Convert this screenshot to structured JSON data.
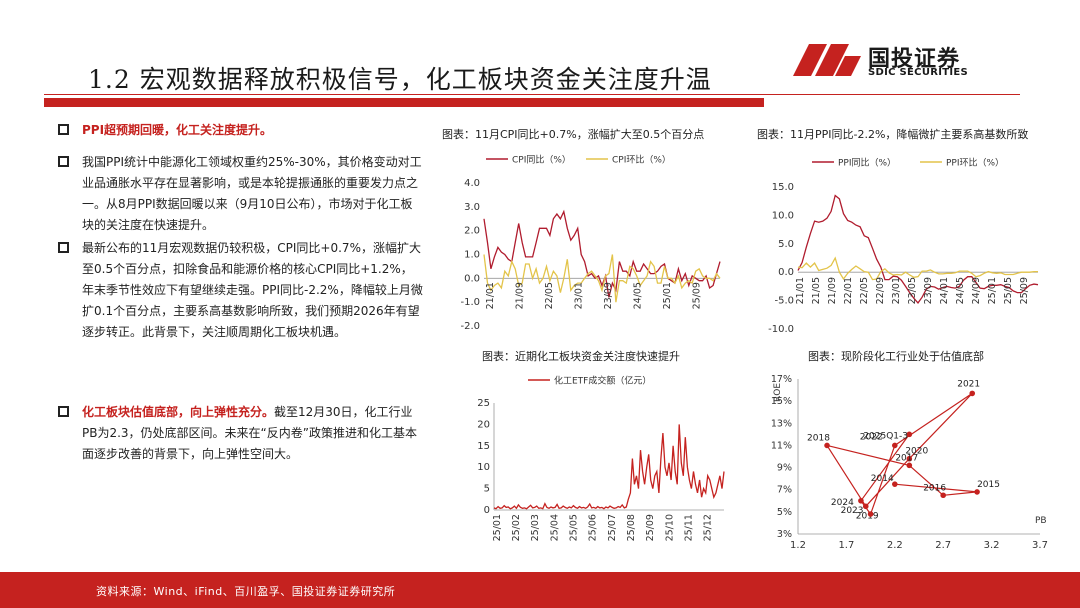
{
  "header": {
    "title": "1.2 宏观数据释放积极信号，化工板块资金关注度升温",
    "logo_cn": "国投证券",
    "logo_en": "SDIC SECURITIES"
  },
  "bullets": [
    {
      "parts": [
        {
          "text": "PPI超预期回暖，化工关注度提升。",
          "red": true
        }
      ]
    },
    {
      "parts": [
        {
          "text": "我国PPI统计中能源化工领域权重约25%-30%，其价格变动对工业品通胀水平存在显著影响，或是本轮提振通胀的重要发力点之一。从8月PPI数据回暖以来（9月10日公布），市场对于化工板块的关注度在快速提升。",
          "red": false
        }
      ]
    },
    {
      "parts": [
        {
          "text": "最新公布的11月宏观数据仍较积极，CPI同比+0.7%，涨幅扩大至0.5个百分点，扣除食品和能源价格的核心CPI同比+1.2%，年末季节性效应下有望继续走强。PPI同比-2.2%，降幅较上月微扩0.1个百分点，主要系高基数影响所致，我们预期2026年有望逐步转正。此背景下，关注顺周期化工板块机遇。",
          "red": false
        }
      ]
    },
    {
      "parts": [
        {
          "text": "化工板块估值底部，向上弹性充分。",
          "red": true
        },
        {
          "text": "截至12月30日，化工行业PB为2.3，仍处底部区间。未来在“反内卷”政策推进和化工基本面逐步改善的背景下，向上弹性空间大。",
          "red": false
        }
      ]
    }
  ],
  "captions": {
    "cpi": "图表：11月CPI同比+0.7%，涨幅扩大至0.5个百分点",
    "ppi": "图表：11月PPI同比-2.2%，降幅微扩主要系高基数所致",
    "etf": "图表：近期化工板块资金关注度快速提升",
    "val": "图表：现阶段化工行业处于估值底部"
  },
  "footer": {
    "source": "资料来源：Wind、iFind、百川盈孚、国投证券证券研究所"
  },
  "colors": {
    "red": "#c5221f",
    "dark_red": "#b01c2e",
    "gold": "#e3c44a"
  },
  "chart_data": [
    {
      "type": "line",
      "id": "cpi",
      "series": [
        {
          "name": "CPI同比（%）",
          "color": "#b01c2e",
          "values": [
            2.5,
            1.5,
            0.4,
            0.9,
            1.3,
            1.1,
            1.0,
            0.8,
            0.7,
            1.5,
            2.3,
            1.5,
            0.9,
            0.9,
            0.9,
            1.5,
            2.1,
            2.1,
            2.1,
            1.8,
            2.5,
            2.7,
            2.5,
            2.8,
            2.1,
            1.6,
            1.8,
            2.1,
            1.0,
            0.7,
            0.1,
            0.2,
            0.0,
            0.1,
            -0.3,
            0.1,
            -0.8,
            -0.2,
            -0.5,
            0.7,
            0.3,
            0.3,
            0.1,
            0.7,
            0.3,
            0.3,
            0.6,
            0.4,
            0.2,
            0.2,
            0.3,
            0.5,
            0.6,
            0.0,
            -0.1,
            -0.2,
            0.4,
            -0.1,
            0.2,
            -0.3,
            0.1,
            0.0,
            -0.1,
            -0.1,
            0.1,
            -0.4,
            -0.3,
            0.2,
            0.7
          ]
        },
        {
          "name": "CPI环比（%）",
          "color": "#e3c44a",
          "values": [
            1.0,
            -0.2,
            -0.5,
            -0.3,
            -0.2,
            -0.4,
            0.3,
            0.1,
            0.7,
            0.4,
            -0.3,
            -0.2,
            0.6,
            0.6,
            0.0,
            0.4,
            -0.2,
            0.0,
            0.5,
            -0.1,
            0.3,
            0.1,
            -0.6,
            0.0,
            0.8,
            -0.5,
            -0.3,
            -0.2,
            -0.2,
            0.0,
            0.2,
            0.3,
            0.1,
            -0.1,
            -0.5,
            0.1,
            0.2,
            1.0,
            -1.0,
            -0.1,
            -0.1,
            -0.2,
            0.5,
            0.4,
            0.1,
            -0.3,
            -0.1,
            0.1,
            0.7,
            0.5,
            -0.2,
            -0.2,
            0.5,
            0.0,
            0.0,
            -0.2,
            0.1,
            -0.4,
            -0.2,
            -0.1,
            -0.2,
            0.3,
            0.4,
            0.1,
            0.0,
            0.0,
            -0.1,
            0.2,
            0.0
          ]
        }
      ],
      "x_ticks": [
        "21/01",
        "21/09",
        "22/05",
        "23/01",
        "23/09",
        "24/05",
        "25/01",
        "25/09"
      ],
      "y_ticks": [
        "4.0",
        "3.0",
        "2.0",
        "1.0",
        "0.0",
        "-1.0",
        "-2.0"
      ],
      "ylim": [
        -2,
        4
      ]
    },
    {
      "type": "line",
      "id": "ppi",
      "series": [
        {
          "name": "PPI同比（%）",
          "color": "#b01c2e",
          "values": [
            0.3,
            1.7,
            4.4,
            6.8,
            9.0,
            8.8,
            9.0,
            9.5,
            10.7,
            13.5,
            12.9,
            10.3,
            9.1,
            8.8,
            8.3,
            8.0,
            6.4,
            6.1,
            4.2,
            2.3,
            0.9,
            -1.3,
            -1.3,
            -0.7,
            -0.8,
            -1.4,
            -2.5,
            -3.6,
            -4.6,
            -5.4,
            -4.4,
            -3.0,
            -2.5,
            -2.6,
            -3.0,
            -2.7,
            -2.5,
            -2.7,
            -2.8,
            -2.5,
            -1.4,
            -0.8,
            -0.8,
            -1.8,
            -2.8,
            -2.9,
            -2.5,
            -2.3,
            -2.3,
            -2.2,
            -2.5,
            -2.7,
            -3.3,
            -3.6,
            -3.6,
            -2.9,
            -2.3,
            -2.1,
            -2.2
          ]
        },
        {
          "name": "PPI环比（%）",
          "color": "#e3c44a",
          "values": [
            0.9,
            0.8,
            1.6,
            0.9,
            1.6,
            0.3,
            0.5,
            0.7,
            1.2,
            2.5,
            0.0,
            -1.2,
            -0.2,
            0.5,
            1.1,
            0.6,
            0.1,
            0.0,
            -1.3,
            -1.2,
            0.1,
            0.6,
            -0.1,
            -0.5,
            -0.4,
            -0.5,
            0.0,
            -0.5,
            -0.9,
            -0.8,
            0.2,
            0.2,
            0.4,
            0.0,
            -0.3,
            -0.3,
            -0.2,
            -0.2,
            -0.1,
            0.2,
            0.2,
            0.2,
            -0.2,
            -0.8,
            -0.6,
            -0.2,
            0.1,
            -0.1,
            -0.2,
            -0.1,
            -0.4,
            -0.4,
            -0.4,
            -0.2,
            0.0,
            0.0,
            0.0,
            0.1,
            0.1
          ]
        }
      ],
      "x_ticks": [
        "21/01",
        "21/05",
        "21/09",
        "22/01",
        "22/05",
        "22/09",
        "23/01",
        "23/05",
        "23/09",
        "24/01",
        "24/05",
        "24/09",
        "25/01",
        "25/05",
        "25/09"
      ],
      "y_ticks": [
        "15.0",
        "10.0",
        "5.0",
        "0.0",
        "-5.0",
        "-10.0"
      ],
      "ylim": [
        -10,
        15
      ]
    },
    {
      "type": "line",
      "id": "etf",
      "series": [
        {
          "name": "化工ETF成交额（亿元）",
          "color": "#c5221f",
          "values": [
            0.5,
            0.3,
            0.8,
            0.4,
            0.5,
            1.0,
            0.6,
            0.7,
            0.3,
            0.5,
            0.9,
            0.4,
            1.2,
            0.6,
            0.4,
            0.5,
            0.3,
            0.7,
            1.1,
            0.5,
            0.6,
            0.9,
            0.4,
            0.5,
            0.3,
            1.5,
            0.6,
            0.4,
            0.7,
            0.5,
            0.6,
            1.3,
            0.4,
            0.5,
            0.9,
            0.6,
            0.4,
            0.7,
            0.5,
            1.0,
            0.6,
            0.4,
            0.8,
            0.5,
            0.6,
            0.4,
            0.7,
            1.4,
            0.5,
            0.6,
            0.4,
            0.8,
            0.5,
            0.6,
            0.3,
            0.7,
            0.5,
            0.9,
            0.6,
            0.4,
            0.5,
            0.8,
            0.6,
            1.2,
            0.5,
            0.7,
            2.5,
            4.0,
            12.0,
            6.0,
            8.0,
            5.0,
            14.0,
            9.0,
            6.0,
            10.0,
            13.0,
            7.0,
            5.0,
            8.0,
            9.0,
            4.0,
            12.0,
            18.0,
            10.0,
            8.0,
            11.0,
            7.0,
            15.0,
            9.0,
            6.0,
            20.0,
            11.0,
            8.0,
            17.0,
            10.0,
            7.0,
            5.0,
            9.0,
            6.0,
            4.0,
            7.0,
            3.0,
            5.0,
            4.0,
            8.0,
            7.0,
            5.0,
            3.0,
            4.0,
            6.0,
            8.0,
            5.0,
            9.0
          ]
        }
      ],
      "x_ticks": [
        "25/01",
        "25/02",
        "25/03",
        "25/04",
        "25/05",
        "25/06",
        "25/07",
        "25/08",
        "25/09",
        "25/10",
        "25/11",
        "25/12"
      ],
      "y_ticks": [
        "25",
        "20",
        "15",
        "10",
        "5",
        "0"
      ],
      "ylim": [
        0,
        25
      ]
    },
    {
      "type": "scatter",
      "id": "val",
      "ylabel": "ROE",
      "xlabel": "PB",
      "points": [
        {
          "label": "2018",
          "x": 1.5,
          "y": 11.0
        },
        {
          "label": "2019",
          "x": 1.9,
          "y": 5.5
        },
        {
          "label": "2020",
          "x": 2.35,
          "y": 9.8
        },
        {
          "label": "2021",
          "x": 3.0,
          "y": 15.7
        },
        {
          "label": "2022",
          "x": 2.2,
          "y": 11.0
        },
        {
          "label": "2023",
          "x": 1.95,
          "y": 4.8
        },
        {
          "label": "2014",
          "x": 2.2,
          "y": 7.5
        },
        {
          "label": "2015",
          "x": 3.05,
          "y": 6.8
        },
        {
          "label": "2016",
          "x": 2.7,
          "y": 6.5
        },
        {
          "label": "2017",
          "x": 2.35,
          "y": 9.2
        },
        {
          "label": "2024",
          "x": 1.85,
          "y": 6.0
        },
        {
          "label": "2025Q1-3",
          "x": 2.35,
          "y": 12.0
        }
      ],
      "x_ticks": [
        "1.2",
        "1.7",
        "2.2",
        "2.7",
        "3.2",
        "3.7"
      ],
      "y_ticks": [
        "17%",
        "15%",
        "13%",
        "11%",
        "9%",
        "7%",
        "5%",
        "3%"
      ],
      "xlim": [
        1.2,
        3.7
      ],
      "ylim": [
        3,
        17
      ]
    }
  ]
}
